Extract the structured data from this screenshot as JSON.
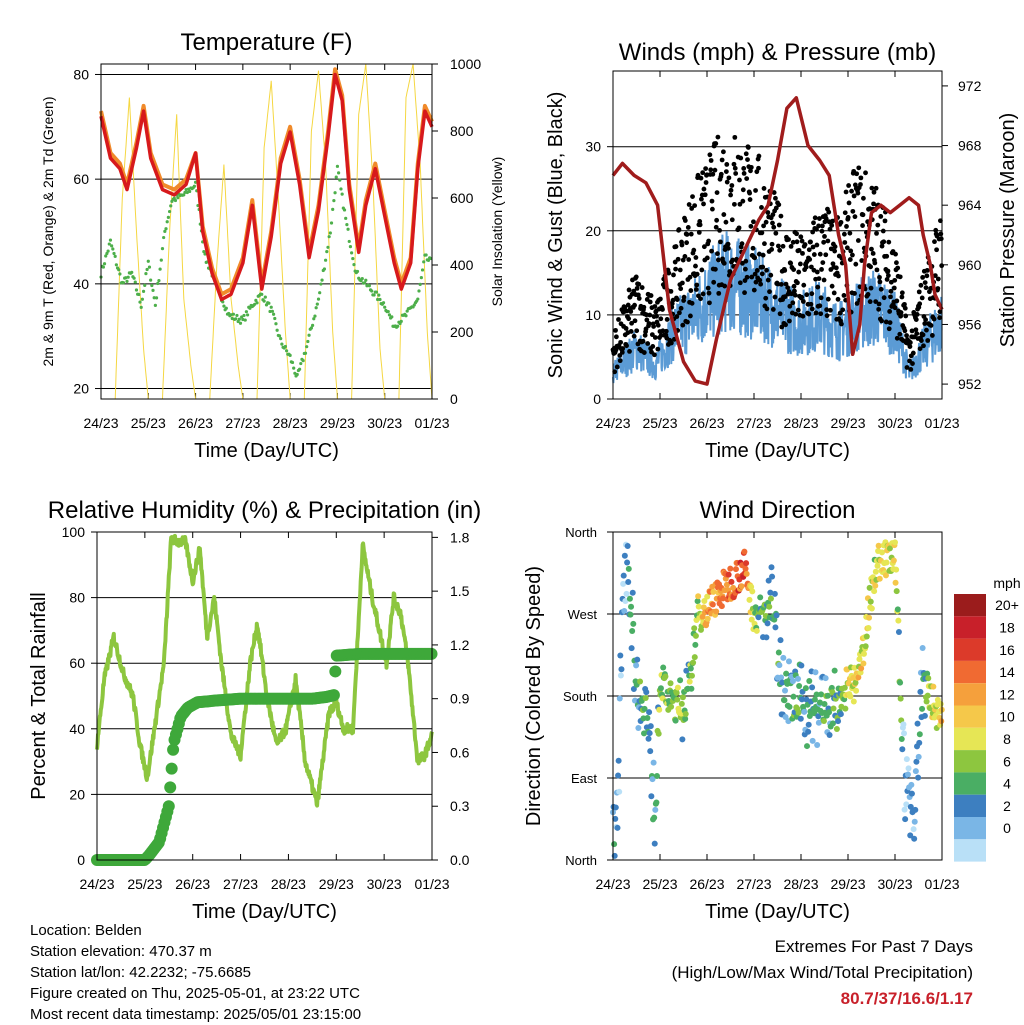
{
  "figure": {
    "location": "Location: Belden",
    "elevation": "Station elevation: 470.37 m",
    "latlon": "Station lat/lon: 42.2232; -75.6685",
    "created": "Figure created on Thu, 2025-05-01, at 23:22 UTC",
    "recent": "Most recent data timestamp: 2025/05/01 23:15:00",
    "extremes_title": "Extremes For Past 7 Days",
    "extremes_subtitle": "(High/Low/Max Wind/Total Precipitation)",
    "extremes_values": "80.7/37/16.6/1.17"
  },
  "colors": {
    "temp2m": "#d7191c",
    "temp9m": "#f08a2a",
    "dewpoint": "#4daf4a",
    "solar": "#f5d742",
    "wind": "#5b9bd5",
    "gust": "#000000",
    "pressure": "#a01c1c",
    "humidity": "#8dc63f",
    "precip": "#3ea83a"
  },
  "chart_data": [
    {
      "type": "line",
      "title": "Temperature (F)",
      "xlabel": "Time (Day/UTC)",
      "ylabel": "2m & 9m T (Red, Orange) & 2m Td (Green)",
      "y2label": "Solar Insolation (Yellow)",
      "x_ticks": [
        "24/23",
        "25/23",
        "26/23",
        "27/23",
        "28/23",
        "29/23",
        "30/23",
        "01/23"
      ],
      "y_ticks": [
        "20",
        "40",
        "60",
        "80"
      ],
      "y2_ticks": [
        "0",
        "200",
        "400",
        "600",
        "800",
        "1000"
      ],
      "ylim": [
        18,
        82
      ],
      "y2lim": [
        0,
        1000
      ],
      "series": [
        {
          "name": "2m T",
          "x": [
            0,
            0.2,
            0.4,
            0.55,
            0.75,
            0.9,
            1.05,
            1.3,
            1.55,
            1.8,
            2.0,
            2.15,
            2.35,
            2.55,
            2.75,
            3.0,
            3.2,
            3.4,
            3.6,
            3.8,
            4.0,
            4.2,
            4.4,
            4.6,
            4.8,
            4.95,
            5.1,
            5.25,
            5.45,
            5.6,
            5.8,
            6.0,
            6.2,
            6.35,
            6.55,
            6.7,
            6.85,
            7.0
          ],
          "y": [
            72,
            64,
            62,
            58,
            66,
            73,
            64,
            58,
            57,
            59,
            65,
            50,
            42,
            37,
            38,
            44,
            55,
            39,
            49,
            63,
            69,
            59,
            45,
            54,
            68,
            80,
            75,
            58,
            46,
            55,
            62,
            53,
            44,
            39,
            44,
            62,
            73,
            70
          ]
        },
        {
          "name": "9m T",
          "x": [
            0,
            0.2,
            0.4,
            0.55,
            0.75,
            0.9,
            1.05,
            1.3,
            1.55,
            1.8,
            2.0,
            2.15,
            2.35,
            2.55,
            2.75,
            3.0,
            3.2,
            3.4,
            3.6,
            3.8,
            4.0,
            4.2,
            4.4,
            4.6,
            4.8,
            4.95,
            5.1,
            5.25,
            5.45,
            5.6,
            5.8,
            6.0,
            6.2,
            6.35,
            6.55,
            6.7,
            6.85,
            7.0
          ],
          "y": [
            73,
            65,
            63,
            59,
            67,
            74,
            65,
            59,
            58,
            60,
            65,
            51,
            43,
            38,
            39,
            45,
            56,
            40,
            50,
            64,
            70,
            60,
            46,
            55,
            69,
            81,
            76,
            59,
            47,
            56,
            63,
            54,
            45,
            40,
            45,
            63,
            74,
            71
          ]
        },
        {
          "name": "2m Td",
          "x": [
            0,
            0.2,
            0.45,
            0.65,
            0.85,
            1.0,
            1.15,
            1.35,
            1.5,
            1.75,
            2.0,
            2.2,
            2.4,
            2.7,
            3.0,
            3.2,
            3.4,
            3.6,
            3.8,
            4.0,
            4.15,
            4.35,
            4.6,
            4.85,
            5.0,
            5.2,
            5.4,
            5.6,
            5.8,
            6.0,
            6.2,
            6.45,
            6.7,
            6.85,
            7.0
          ],
          "y": [
            42,
            48,
            40,
            42,
            36,
            44,
            36,
            50,
            56,
            57,
            59,
            45,
            41,
            34,
            33,
            36,
            38,
            35,
            29,
            26,
            22,
            28,
            37,
            50,
            62,
            51,
            42,
            40,
            38,
            36,
            32,
            34,
            37,
            45,
            44
          ]
        },
        {
          "name": "Solar Insolation",
          "x": [
            0,
            0.3,
            0.45,
            0.6,
            0.75,
            0.9,
            1.0,
            1.3,
            1.45,
            1.6,
            1.75,
            1.9,
            2.0,
            2.3,
            2.45,
            2.6,
            2.75,
            2.9,
            3.0,
            3.3,
            3.45,
            3.6,
            3.75,
            3.9,
            4.0,
            4.3,
            4.45,
            4.6,
            4.75,
            4.9,
            5.0,
            5.3,
            5.45,
            5.6,
            5.75,
            5.9,
            6.0,
            6.3,
            6.45,
            6.6,
            6.75,
            6.9,
            7.0
          ],
          "y": [
            0,
            0,
            600,
            900,
            500,
            150,
            0,
            0,
            500,
            850,
            300,
            100,
            0,
            0,
            400,
            700,
            300,
            100,
            0,
            0,
            750,
            950,
            600,
            200,
            0,
            0,
            800,
            980,
            700,
            200,
            0,
            0,
            850,
            1000,
            650,
            150,
            0,
            0,
            900,
            1000,
            700,
            200,
            0
          ]
        }
      ]
    },
    {
      "type": "scatter",
      "title": "Winds (mph) & Pressure (mb)",
      "xlabel": "Time (Day/UTC)",
      "ylabel": "Sonic Wind & Gust (Blue, Black)",
      "y2label": "Station Pressure (Maroon)",
      "x_ticks": [
        "24/23",
        "25/23",
        "26/23",
        "27/23",
        "28/23",
        "29/23",
        "30/23",
        "01/23"
      ],
      "y_ticks": [
        "0",
        "10",
        "20",
        "30"
      ],
      "y2_ticks": [
        "952",
        "956",
        "960",
        "964",
        "968",
        "972"
      ],
      "ylim": [
        0,
        39
      ],
      "y2lim": [
        951,
        973
      ],
      "series": [
        {
          "name": "Sonic Wind",
          "x": [
            0,
            0.5,
            0.9,
            1.3,
            1.7,
            2.0,
            2.4,
            2.8,
            3.2,
            3.6,
            4.0,
            4.4,
            4.8,
            5.2,
            5.6,
            6.0,
            6.3,
            6.6,
            7.0
          ],
          "y": [
            3,
            6,
            4,
            8,
            10,
            12,
            14,
            13,
            12,
            10,
            9,
            10,
            8,
            10,
            11,
            9,
            3,
            6,
            9
          ]
        },
        {
          "name": "Gust",
          "x": [
            0,
            0.5,
            0.9,
            1.3,
            1.7,
            2.0,
            2.4,
            2.8,
            3.2,
            3.6,
            4.0,
            4.4,
            4.8,
            5.2,
            5.6,
            6.0,
            6.3,
            6.6,
            7.0
          ],
          "y": [
            6,
            12,
            9,
            14,
            20,
            22,
            26,
            24,
            22,
            17,
            15,
            18,
            17,
            22,
            20,
            15,
            6,
            12,
            18
          ]
        },
        {
          "name": "Station Pressure",
          "x": [
            0,
            0.2,
            0.45,
            0.7,
            0.95,
            1.2,
            1.5,
            1.75,
            2.0,
            2.2,
            2.5,
            2.8,
            3.1,
            3.3,
            3.5,
            3.7,
            3.9,
            4.15,
            4.4,
            4.6,
            4.8,
            4.95,
            5.1,
            5.25,
            5.35,
            5.5,
            5.7,
            5.9,
            6.1,
            6.3,
            6.5,
            6.6,
            6.75,
            6.85,
            7.0
          ],
          "y": [
            966,
            966.8,
            966,
            965.5,
            964,
            957,
            953.5,
            952.2,
            952,
            955,
            959,
            961,
            963,
            964,
            967,
            970.5,
            971.2,
            968,
            967,
            966,
            962,
            960,
            954,
            956,
            960,
            963.5,
            964,
            963.5,
            964,
            964.5,
            964,
            962,
            960,
            958,
            957
          ]
        }
      ]
    },
    {
      "type": "line",
      "title": "Relative Humidity (%) & Precipitation (in)",
      "xlabel": "Time (Day/UTC)",
      "ylabel": "Percent & Total Rainfall",
      "x_ticks": [
        "24/23",
        "25/23",
        "26/23",
        "27/23",
        "28/23",
        "29/23",
        "30/23",
        "01/23"
      ],
      "y_ticks": [
        "0",
        "20",
        "40",
        "60",
        "80",
        "100"
      ],
      "y2_ticks": [
        "0.0",
        "0.3",
        "0.6",
        "0.9",
        "1.2",
        "1.5",
        "1.8"
      ],
      "ylim": [
        0,
        100
      ],
      "y2lim": [
        0,
        1.83
      ],
      "series": [
        {
          "name": "Relative Humidity",
          "x": [
            0,
            0.15,
            0.35,
            0.55,
            0.75,
            0.9,
            1.05,
            1.25,
            1.4,
            1.55,
            1.7,
            1.85,
            2.0,
            2.15,
            2.3,
            2.45,
            2.6,
            2.8,
            3.0,
            3.2,
            3.35,
            3.55,
            3.75,
            3.95,
            4.15,
            4.35,
            4.6,
            4.85,
            5.0,
            5.15,
            5.35,
            5.55,
            5.75,
            5.9,
            6.05,
            6.2,
            6.35,
            6.5,
            6.7,
            6.85,
            7.0
          ],
          "y": [
            35,
            55,
            68,
            57,
            50,
            35,
            25,
            45,
            60,
            98,
            97,
            97,
            85,
            95,
            68,
            80,
            60,
            38,
            32,
            60,
            72,
            50,
            35,
            40,
            55,
            30,
            17,
            45,
            48,
            40,
            40,
            96,
            80,
            70,
            60,
            80,
            75,
            60,
            30,
            32,
            38
          ]
        },
        {
          "name": "Total Precipitation",
          "x": [
            0,
            0.5,
            1.0,
            1.1,
            1.3,
            1.5,
            1.6,
            1.75,
            1.9,
            2.1,
            2.5,
            3.0,
            3.5,
            4.0,
            4.5,
            4.8,
            4.95,
            5.0,
            5.5,
            6.0,
            6.5,
            7.0
          ],
          "y": [
            0,
            0,
            0,
            0.03,
            0.1,
            0.3,
            0.65,
            0.8,
            0.85,
            0.88,
            0.89,
            0.9,
            0.9,
            0.9,
            0.9,
            0.91,
            0.92,
            1.14,
            1.15,
            1.15,
            1.15,
            1.15
          ]
        }
      ]
    },
    {
      "type": "scatter",
      "title": "Wind Direction",
      "xlabel": "Time (Day/UTC)",
      "ylabel": "Direction (Colored By Speed)",
      "x_ticks": [
        "24/23",
        "25/23",
        "26/23",
        "27/23",
        "28/23",
        "29/23",
        "30/23",
        "01/23"
      ],
      "y_ticks": [
        "North",
        "East",
        "South",
        "West",
        "North"
      ],
      "ylim": [
        0,
        360
      ],
      "colorbar_title": "mph",
      "colorbar_labels": [
        "20+",
        "18",
        "16",
        "14",
        "12",
        "10",
        "8",
        "6",
        "4",
        "2",
        "0"
      ],
      "colorbar_colors": [
        "#9b1c1c",
        "#c8202a",
        "#dc3a2a",
        "#f06a32",
        "#f5a03c",
        "#f5c84a",
        "#e6e655",
        "#8dc63f",
        "#4aae64",
        "#3d7fc0",
        "#7ab6e6",
        "#b9e0f7"
      ],
      "series": [
        {
          "name": "Direction",
          "x": [
            0,
            0.1,
            0.2,
            0.3,
            0.5,
            0.7,
            0.9,
            1.0,
            1.2,
            1.4,
            1.6,
            1.8,
            2.0,
            2.2,
            2.4,
            2.6,
            2.8,
            3.0,
            3.2,
            3.4,
            3.6,
            3.8,
            4.0,
            4.2,
            4.4,
            4.6,
            4.8,
            5.0,
            5.2,
            5.4,
            5.6,
            5.8,
            6.0,
            6.2,
            6.4,
            6.6,
            6.8,
            7.0
          ],
          "y": [
            60,
            30,
            300,
            340,
            190,
            170,
            50,
            200,
            175,
            170,
            175,
            270,
            275,
            290,
            300,
            310,
            320,
            270,
            270,
            280,
            200,
            175,
            170,
            170,
            165,
            170,
            160,
            195,
            190,
            260,
            325,
            330,
            330,
            90,
            50,
            200,
            175,
            150
          ],
          "speed": [
            3,
            2,
            2,
            3,
            4,
            5,
            3,
            7,
            7,
            7,
            6,
            8,
            12,
            13,
            14,
            15,
            16,
            7,
            6,
            5,
            4,
            4,
            5,
            4,
            4,
            5,
            5,
            9,
            10,
            9,
            8,
            10,
            9,
            2,
            3,
            4,
            9,
            11
          ]
        }
      ]
    }
  ]
}
